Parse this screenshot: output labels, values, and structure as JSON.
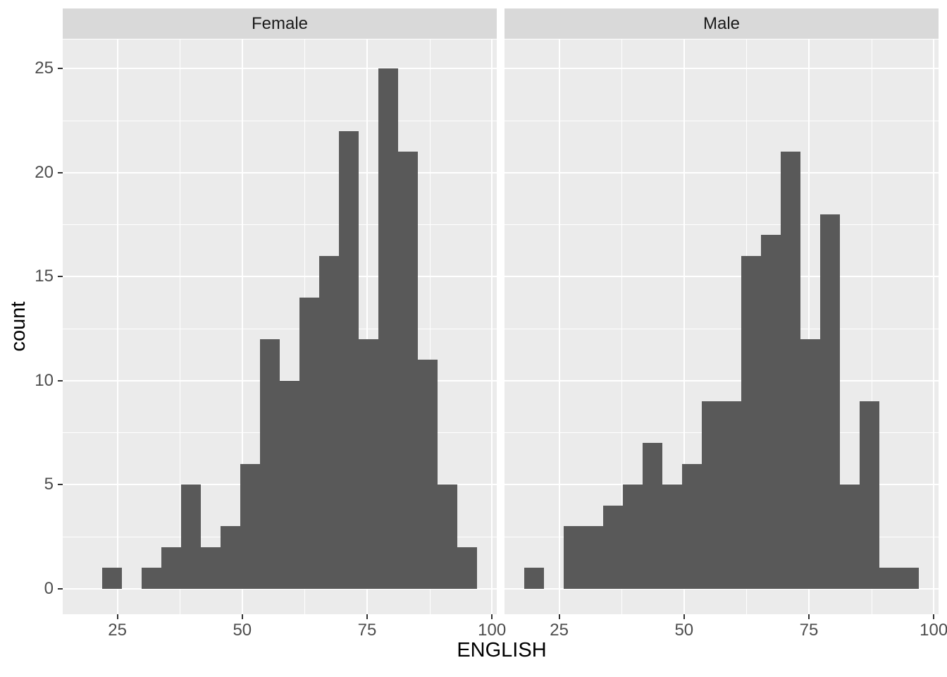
{
  "chart_data": {
    "type": "bar",
    "subtype": "faceted-histogram",
    "title": "",
    "xlabel": "ENGLISH",
    "ylabel": "count",
    "facet_variable_levels": [
      "Female",
      "Male"
    ],
    "x_ticks": [
      25,
      50,
      75,
      100
    ],
    "y_ticks": [
      0,
      5,
      10,
      15,
      20,
      25
    ],
    "x_minor_gridlines": [
      37.5,
      62.5,
      87.5
    ],
    "y_minor_gridlines": [
      2.5,
      7.5,
      12.5,
      17.5,
      22.5
    ],
    "x_range": [
      14.05,
      100.95
    ],
    "y_range": [
      -1.25,
      26.25
    ],
    "bin_width": 3.95,
    "bin_starts": [
      18,
      21.95,
      25.9,
      29.85,
      33.8,
      37.75,
      41.7,
      45.65,
      49.6,
      53.55,
      57.5,
      61.45,
      65.4,
      69.35,
      73.3,
      77.25,
      81.2,
      85.15,
      89.1,
      93.05
    ],
    "series": [
      {
        "name": "Female",
        "counts": [
          0,
          1,
          0,
          1,
          2,
          5,
          2,
          3,
          6,
          12,
          10,
          14,
          16,
          22,
          12,
          25,
          21,
          11,
          5,
          2
        ]
      },
      {
        "name": "Male",
        "counts": [
          1,
          0,
          3,
          3,
          4,
          5,
          7,
          5,
          6,
          9,
          9,
          16,
          17,
          21,
          12,
          18,
          5,
          9,
          1,
          1
        ]
      }
    ],
    "legend": "none",
    "grid": true,
    "colors": {
      "bar": "#595959",
      "panel_background": "#EBEBEB",
      "strip_background": "#D9D9D9",
      "gridline": "#FFFFFF",
      "tick_mark": "#333333",
      "tick_label": "#4D4D4D",
      "axis_title": "#000000",
      "strip_text": "#1A1A1A",
      "figure_background": "#FFFFFF"
    }
  }
}
